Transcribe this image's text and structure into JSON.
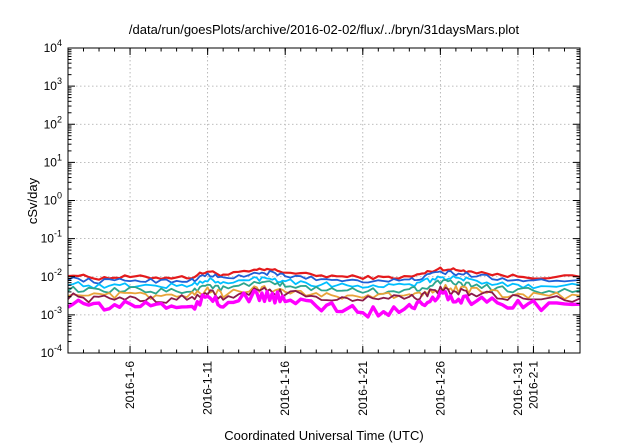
{
  "chart_data": {
    "type": "line",
    "title": "/data/run/goesPlots/archive/2016-02-02/flux/../bryn/31daysMars.plot",
    "xlabel": "Coordinated Universal Time (UTC)",
    "ylabel": "cSv/day",
    "y_scale": "log",
    "ylim": [
      0.0001,
      10000
    ],
    "xlim": [
      "2016-01-02",
      "2016-02-04"
    ],
    "x_ticks": [
      {
        "label": "2016-1-6",
        "date": "2016-01-06"
      },
      {
        "label": "2016-1-11",
        "date": "2016-01-11"
      },
      {
        "label": "2016-1-16",
        "date": "2016-01-16"
      },
      {
        "label": "2016-1-21",
        "date": "2016-01-21"
      },
      {
        "label": "2016-1-26",
        "date": "2016-01-26"
      },
      {
        "label": "2016-1-31",
        "date": "2016-01-31"
      },
      {
        "label": "2016-2-1",
        "date": "2016-02-01"
      }
    ],
    "y_ticks": [
      {
        "base": "10",
        "exp": "-4",
        "value": 0.0001
      },
      {
        "base": "10",
        "exp": "-3",
        "value": 0.001
      },
      {
        "base": "10",
        "exp": "-2",
        "value": 0.01
      },
      {
        "base": "10",
        "exp": "-1",
        "value": 0.1
      },
      {
        "base": "10",
        "exp": "0",
        "value": 1
      },
      {
        "base": "10",
        "exp": "1",
        "value": 10
      },
      {
        "base": "10",
        "exp": "2",
        "value": 100
      },
      {
        "base": "10",
        "exp": "3",
        "value": 1000
      },
      {
        "base": "10",
        "exp": "4",
        "value": 10000
      }
    ],
    "grid": true,
    "legend": "none",
    "sample_dates": [
      "2016-01-02",
      "2016-01-04",
      "2016-01-06",
      "2016-01-08",
      "2016-01-10",
      "2016-01-11",
      "2016-01-12",
      "2016-01-14",
      "2016-01-15",
      "2016-01-16",
      "2016-01-18",
      "2016-01-20",
      "2016-01-22",
      "2016-01-24",
      "2016-01-25",
      "2016-01-26",
      "2016-01-27",
      "2016-01-28",
      "2016-01-30",
      "2016-02-01",
      "2016-02-04"
    ],
    "series": [
      {
        "color": "#e41a1c",
        "values": [
          0.0115,
          0.0092,
          0.01,
          0.0095,
          0.0098,
          0.014,
          0.011,
          0.0145,
          0.0155,
          0.0132,
          0.0108,
          0.01,
          0.0095,
          0.0098,
          0.0125,
          0.0165,
          0.015,
          0.014,
          0.0108,
          0.0098,
          0.01
        ]
      },
      {
        "color": "#1f5fd6",
        "values": [
          0.0092,
          0.0075,
          0.0082,
          0.0078,
          0.008,
          0.0115,
          0.009,
          0.0118,
          0.0125,
          0.0108,
          0.0088,
          0.0082,
          0.0078,
          0.008,
          0.01,
          0.0135,
          0.012,
          0.0112,
          0.0088,
          0.008,
          0.0082
        ]
      },
      {
        "color": "#00bfff",
        "values": [
          0.007,
          0.0055,
          0.006,
          0.0057,
          0.006,
          0.0085,
          0.0065,
          0.0088,
          0.0092,
          0.008,
          0.0064,
          0.006,
          0.0057,
          0.006,
          0.0074,
          0.0098,
          0.0088,
          0.0082,
          0.0064,
          0.0058,
          0.006
        ]
      },
      {
        "color": "#2ca58d",
        "values": [
          0.005,
          0.004,
          0.0045,
          0.0042,
          0.0044,
          0.0062,
          0.0048,
          0.0064,
          0.0068,
          0.0058,
          0.0047,
          0.0044,
          0.0042,
          0.0044,
          0.0054,
          0.0072,
          0.0065,
          0.006,
          0.0047,
          0.0043,
          0.0044
        ]
      },
      {
        "color": "#e8a33a",
        "values": [
          0.0038,
          0.003,
          0.0033,
          0.0031,
          0.0032,
          0.0045,
          0.0035,
          0.0047,
          0.005,
          0.0043,
          0.0034,
          0.0032,
          0.0031,
          0.0032,
          0.004,
          0.0053,
          0.0048,
          0.0044,
          0.0034,
          0.0031,
          0.0032
        ]
      },
      {
        "color": "#8b1a4a",
        "values": [
          0.0032,
          0.0025,
          0.0028,
          0.0026,
          0.0027,
          0.0038,
          0.003,
          0.004,
          0.0042,
          0.0036,
          0.0029,
          0.0027,
          0.0026,
          0.0027,
          0.0034,
          0.0045,
          0.004,
          0.0037,
          0.0029,
          0.0026,
          0.0027
        ]
      },
      {
        "color": "#ff00ff",
        "values": [
          0.0022,
          0.0016,
          0.0019,
          0.0017,
          0.0018,
          0.0028,
          0.002,
          0.003,
          0.0031,
          0.0025,
          0.0018,
          0.0014,
          0.0012,
          0.0016,
          0.0024,
          0.0034,
          0.0029,
          0.0026,
          0.0019,
          0.0017,
          0.0019
        ]
      }
    ]
  }
}
